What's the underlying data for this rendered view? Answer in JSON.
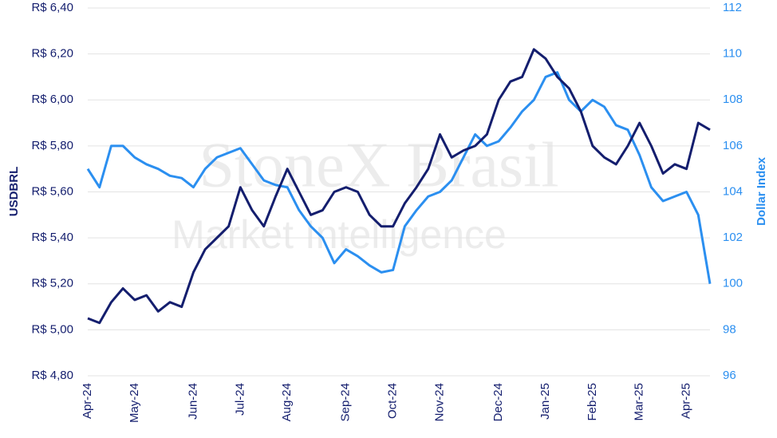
{
  "chart_data": {
    "type": "line",
    "y_label": "USDBRL",
    "y2_label": "Dollar Index",
    "watermark": [
      "StoneX Brasil",
      "Market Intelligence"
    ],
    "categories": [
      "Apr-24",
      null,
      null,
      null,
      "May-24",
      null,
      null,
      null,
      null,
      "Jun-24",
      null,
      null,
      null,
      "Jul-24",
      null,
      null,
      null,
      "Aug-24",
      null,
      null,
      null,
      null,
      "Sep-24",
      null,
      null,
      null,
      "Oct-24",
      null,
      null,
      null,
      "Nov-24",
      null,
      null,
      null,
      null,
      "Dec-24",
      null,
      null,
      null,
      "Jan-25",
      null,
      null,
      null,
      "Feb-25",
      null,
      null,
      null,
      "Mar-25",
      null,
      null,
      null,
      "Apr-25",
      null,
      null
    ],
    "series": [
      {
        "name": "USDBRL",
        "color": "#141e6e",
        "axis": "y",
        "values": [
          5.05,
          5.03,
          5.12,
          5.18,
          5.13,
          5.15,
          5.08,
          5.12,
          5.1,
          5.25,
          5.35,
          5.4,
          5.45,
          5.62,
          5.52,
          5.45,
          5.58,
          5.7,
          5.6,
          5.5,
          5.52,
          5.6,
          5.62,
          5.6,
          5.5,
          5.45,
          5.45,
          5.55,
          5.62,
          5.7,
          5.85,
          5.75,
          5.78,
          5.8,
          5.85,
          6.0,
          6.08,
          6.1,
          6.22,
          6.18,
          6.1,
          6.05,
          5.95,
          5.8,
          5.75,
          5.72,
          5.8,
          5.9,
          5.8,
          5.68,
          5.72,
          5.7,
          5.9,
          5.87
        ]
      },
      {
        "name": "Dollar Index",
        "color": "#2b8ff0",
        "axis": "y2",
        "values": [
          105.0,
          104.2,
          106.0,
          106.0,
          105.5,
          105.2,
          105.0,
          104.7,
          104.6,
          104.2,
          105.0,
          105.5,
          105.7,
          105.9,
          105.2,
          104.5,
          104.3,
          104.2,
          103.2,
          102.5,
          102.0,
          100.9,
          101.5,
          101.2,
          100.8,
          100.5,
          100.6,
          102.5,
          103.2,
          103.8,
          104.0,
          104.5,
          105.5,
          106.5,
          106.0,
          106.2,
          106.8,
          107.5,
          108.0,
          109.0,
          109.2,
          108.0,
          107.5,
          108.0,
          107.7,
          106.9,
          106.7,
          105.6,
          104.2,
          103.6,
          103.8,
          104.0,
          103.0,
          100.0
        ]
      }
    ],
    "ylim": [
      4.8,
      6.4
    ],
    "yticks": [
      {
        "value": 4.8,
        "label": "R$ 4,80"
      },
      {
        "value": 5.0,
        "label": "R$ 5,00"
      },
      {
        "value": 5.2,
        "label": "R$ 5,20"
      },
      {
        "value": 5.4,
        "label": "R$ 5,40"
      },
      {
        "value": 5.6,
        "label": "R$ 5,60"
      },
      {
        "value": 5.8,
        "label": "R$ 5,80"
      },
      {
        "value": 6.0,
        "label": "R$ 6,00"
      },
      {
        "value": 6.2,
        "label": "R$ 6,20"
      },
      {
        "value": 6.4,
        "label": "R$ 6,40"
      }
    ],
    "y2lim": [
      96,
      112
    ],
    "y2ticks": [
      96,
      98,
      100,
      102,
      104,
      106,
      108,
      110,
      112
    ],
    "grid": true
  }
}
